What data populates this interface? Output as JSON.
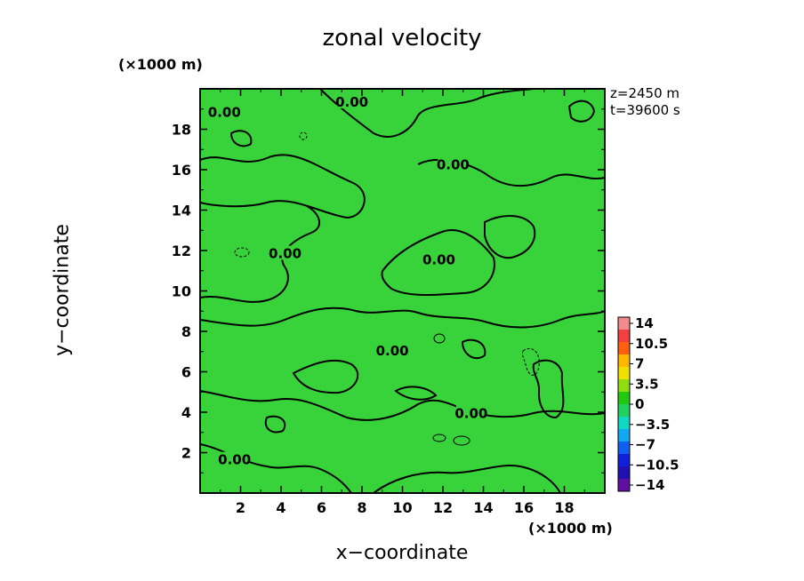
{
  "chart_data": {
    "type": "heatmap",
    "title": "zonal velocity",
    "xlabel": "x−coordinate",
    "ylabel": "y−coordinate",
    "x_unit": "(×1000 m)",
    "y_unit": "(×1000 m)",
    "xlim": [
      0,
      20
    ],
    "ylim": [
      0,
      20
    ],
    "x_ticks": [
      2,
      4,
      6,
      8,
      10,
      12,
      14,
      16,
      18
    ],
    "y_ticks": [
      2,
      4,
      6,
      8,
      10,
      12,
      14,
      16,
      18
    ],
    "annotations": [
      "z=2450 m",
      "t=39600 s"
    ],
    "contour_labels": [
      {
        "text": "0.00",
        "x": 1.2,
        "y": 18.8
      },
      {
        "text": "0.00",
        "x": 7.5,
        "y": 19.3
      },
      {
        "text": "0.00",
        "x": 12.5,
        "y": 16.2
      },
      {
        "text": "0.00",
        "x": 11.8,
        "y": 11.5
      },
      {
        "text": "0.00",
        "x": 4.2,
        "y": 11.8
      },
      {
        "text": "0.00",
        "x": 9.5,
        "y": 7.0
      },
      {
        "text": "0.00",
        "x": 13.4,
        "y": 3.9
      },
      {
        "text": "0.00",
        "x": 1.7,
        "y": 1.6
      }
    ],
    "colorbar": {
      "ticks": [
        "14",
        "10.5",
        "7",
        "3.5",
        "0",
        "−3.5",
        "−7",
        "−10.5",
        "−14"
      ],
      "range": [
        -14,
        14
      ],
      "colors": [
        "#f08c8c",
        "#f04040",
        "#ff6010",
        "#ffb800",
        "#f0e000",
        "#90dc10",
        "#20c810",
        "#20d060",
        "#10d8c0",
        "#10a8f0",
        "#1060f0",
        "#1020d8",
        "#2010b0",
        "#6010a0"
      ]
    },
    "colors": {
      "dominant": "#38d33a",
      "positive": "#a8e030",
      "negative": "#28d8a8"
    }
  }
}
